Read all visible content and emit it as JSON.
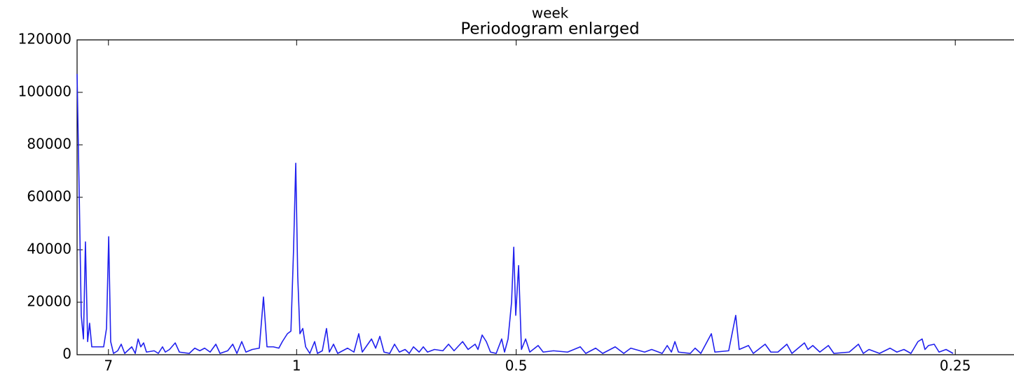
{
  "chart_data": {
    "type": "line",
    "title": "Periodogram enlarged",
    "xlabel": "week",
    "x": [
      0,
      0.01,
      0.019,
      0.029,
      0.038,
      0.048,
      0.057,
      0.067,
      0.096,
      0.121,
      0.134,
      0.144,
      0.153,
      0.166,
      0.185,
      0.201,
      0.217,
      0.249,
      0.265,
      0.278,
      0.29,
      0.303,
      0.316,
      0.351,
      0.37,
      0.389,
      0.402,
      0.421,
      0.447,
      0.466,
      0.511,
      0.536,
      0.559,
      0.581,
      0.606,
      0.632,
      0.651,
      0.686,
      0.709,
      0.728,
      0.75,
      0.769,
      0.798,
      0.83,
      0.849,
      0.865,
      0.894,
      0.919,
      0.935,
      0.958,
      0.974,
      0.986,
      0.996,
      1.005,
      1.015,
      1.028,
      1.041,
      1.06,
      1.082,
      1.095,
      1.117,
      1.136,
      1.149,
      1.168,
      1.187,
      1.232,
      1.261,
      1.283,
      1.299,
      1.341,
      1.36,
      1.379,
      1.398,
      1.424,
      1.446,
      1.468,
      1.494,
      1.513,
      1.532,
      1.558,
      1.577,
      1.596,
      1.628,
      1.666,
      1.692,
      1.717,
      1.756,
      1.781,
      1.813,
      1.826,
      1.845,
      1.864,
      1.883,
      1.909,
      1.934,
      1.947,
      1.963,
      1.979,
      1.989,
      1.998,
      2.011,
      2.024,
      2.043,
      2.062,
      2.1,
      2.123,
      2.17,
      2.234,
      2.292,
      2.317,
      2.362,
      2.394,
      2.451,
      2.49,
      2.522,
      2.585,
      2.617,
      2.665,
      2.688,
      2.707,
      2.723,
      2.739,
      2.793,
      2.815,
      2.841,
      2.889,
      2.905,
      2.968,
      3.0,
      3.016,
      3.058,
      3.08,
      3.134,
      3.16,
      3.192,
      3.233,
      3.256,
      3.313,
      3.329,
      3.351,
      3.383,
      3.422,
      3.447,
      3.517,
      3.559,
      3.581,
      3.607,
      3.655,
      3.703,
      3.734,
      3.766,
      3.798,
      3.83,
      3.849,
      3.862,
      3.878,
      3.904,
      3.926,
      3.958,
      3.99
    ],
    "series": [
      {
        "color": "#2020ee",
        "values": [
          107000,
          60000,
          15000,
          6000,
          43000,
          5000,
          12000,
          3000,
          3000,
          3000,
          10000,
          45000,
          5000,
          500,
          1500,
          4000,
          500,
          3000,
          500,
          6000,
          3000,
          4500,
          1000,
          1500,
          500,
          3000,
          1000,
          2000,
          4500,
          1000,
          500,
          2500,
          1500,
          2500,
          1000,
          4000,
          500,
          1500,
          4000,
          500,
          5000,
          1000,
          2000,
          2500,
          22000,
          3000,
          3000,
          2500,
          5000,
          8000,
          9000,
          40000,
          73000,
          30000,
          8000,
          10000,
          3000,
          500,
          5000,
          500,
          1500,
          10000,
          1000,
          4000,
          500,
          2500,
          1000,
          8000,
          1000,
          6000,
          2500,
          7000,
          1000,
          500,
          4000,
          1000,
          2000,
          500,
          3000,
          1000,
          3000,
          1000,
          2000,
          1500,
          4000,
          1500,
          5000,
          2000,
          4000,
          2000,
          7500,
          5000,
          1000,
          500,
          6000,
          1000,
          6000,
          20000,
          41000,
          15000,
          34000,
          2000,
          6000,
          1000,
          3500,
          1000,
          1500,
          1000,
          3000,
          500,
          2500,
          500,
          3000,
          500,
          2500,
          1000,
          2000,
          500,
          3500,
          1000,
          5000,
          1000,
          500,
          2500,
          500,
          8000,
          1000,
          1500,
          15000,
          2000,
          3500,
          500,
          4000,
          1000,
          1000,
          4000,
          500,
          4500,
          2000,
          3500,
          1000,
          3500,
          500,
          1000,
          4000,
          500,
          2000,
          500,
          2500,
          1000,
          2000,
          500,
          5000,
          6000,
          2000,
          3500,
          4000,
          1000,
          2000,
          500
        ]
      }
    ],
    "xlim": [
      0,
      4.27
    ],
    "xticks": [
      {
        "value": 0.142857,
        "label": "7"
      },
      {
        "value": 1,
        "label": "1"
      },
      {
        "value": 2,
        "label": "0.5"
      },
      {
        "value": 4,
        "label": "0.25"
      }
    ],
    "ylim": [
      0,
      120000
    ],
    "yticks": [
      0,
      20000,
      40000,
      60000,
      80000,
      100000,
      120000
    ]
  }
}
